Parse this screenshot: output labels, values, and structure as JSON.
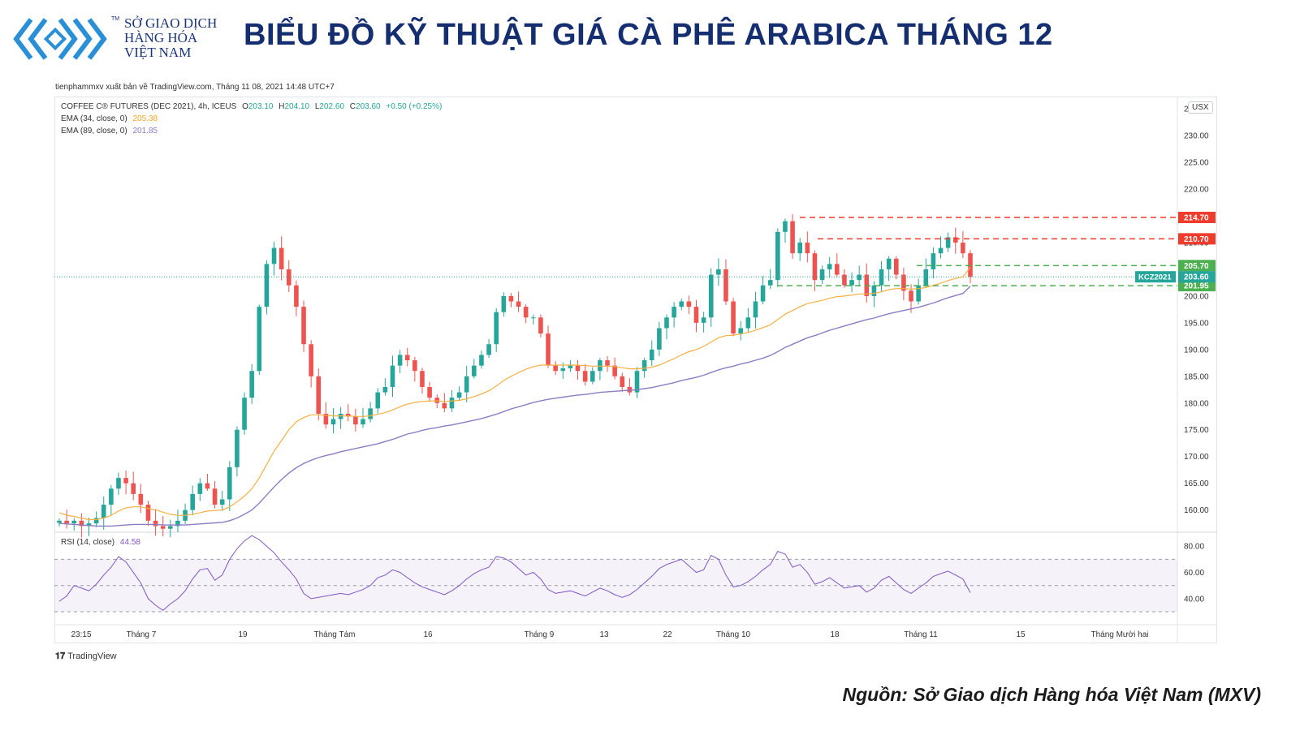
{
  "logo": {
    "tm": "TM",
    "line1": "SỞ GIAO DỊCH",
    "line2": "HÀNG HÓA",
    "line3": "VIỆT NAM",
    "color": "#2a8fd6"
  },
  "title": "BIỂU ĐỒ KỸ THUẬT GIÁ CÀ PHÊ ARABICA THÁNG 12",
  "published": "tienphammxv xuất bản về TradingView.com, Tháng 11 08, 2021 14:48 UTC+7",
  "legend": {
    "symbol": "COFFEE C® FUTURES (DEC 2021), 4h, ICEUS",
    "o_label": "O",
    "o": "203.10",
    "h_label": "H",
    "h": "204.10",
    "l_label": "L",
    "l": "202.60",
    "c_label": "C",
    "c": "203.60",
    "change": "+0.50 (+0.25%)",
    "ema34": "EMA (34, close, 0)",
    "ema34_value": "205.38",
    "ema89": "EMA (89, close, 0)",
    "ema89_value": "201.85",
    "rsi": "RSI (14, close)",
    "rsi_value": "44.58"
  },
  "currency": "USX",
  "footer_brand": "TradingView",
  "source": "Nguồn: Sở Giao dịch Hàng hóa Việt Nam (MXV)",
  "colors": {
    "up": "#26a69a",
    "down": "#ef5350",
    "ema34": "#f5b041",
    "ema89": "#8e7cc3",
    "rsi": "#7e57c2",
    "resistance": "#ef3b2c",
    "support": "#4caf50",
    "current": "#26a69a"
  },
  "chart_data": {
    "type": "line",
    "ylim": [
      156,
      237
    ],
    "y_ticks": [
      "160.00",
      "165.00",
      "170.00",
      "175.00",
      "180.00",
      "185.00",
      "190.00",
      "195.00",
      "200.00",
      "205.00",
      "210.00",
      "215.00",
      "220.00",
      "225.00",
      "230.00",
      "235.00"
    ],
    "x_ticks": [
      "23:15",
      "Tháng 7",
      "19",
      "Tháng Tám",
      "16",
      "Tháng 9",
      "13",
      "22",
      "Tháng 10",
      "18",
      "Tháng 11",
      "15",
      "Tháng Mười hai"
    ],
    "close": [
      158,
      157.5,
      158,
      157,
      157.5,
      158.5,
      161,
      164,
      166,
      165,
      163,
      161,
      158,
      157,
      156.5,
      157,
      158,
      160,
      163,
      165,
      164,
      161,
      162,
      168,
      175,
      181,
      186,
      198,
      206,
      209,
      205,
      202,
      198,
      191,
      185,
      178,
      176,
      177,
      178,
      177.5,
      176,
      177,
      179,
      182,
      183,
      187,
      189,
      188,
      186,
      183,
      181,
      180,
      179,
      181,
      182,
      185,
      187,
      189,
      191,
      197,
      200,
      199,
      198,
      196,
      196,
      193,
      187,
      186,
      186.5,
      187,
      186,
      184,
      186,
      188,
      187,
      185,
      183,
      182,
      186,
      188,
      190,
      194,
      196,
      198,
      199,
      198,
      195,
      196,
      204,
      205,
      199,
      193,
      194,
      196,
      199,
      202,
      203,
      212,
      214,
      208,
      210,
      208,
      203,
      205,
      206,
      204,
      202,
      203,
      204,
      200,
      202,
      205,
      207,
      204,
      201,
      199,
      202,
      205,
      208,
      209,
      211,
      210,
      208,
      203.6
    ],
    "ema34": [
      159.5,
      159,
      158.8,
      158.5,
      158.2,
      158.2,
      158.5,
      159,
      159.8,
      160.4,
      160.6,
      160.6,
      160.3,
      160,
      159.6,
      159.2,
      159,
      159,
      159.2,
      159.5,
      159.8,
      159.9,
      160,
      160.6,
      161.5,
      162.6,
      164,
      166,
      168.5,
      171,
      173,
      175,
      176.5,
      177.3,
      177.8,
      177.8,
      177.7,
      177.6,
      177.6,
      177.6,
      177.5,
      177.5,
      177.6,
      177.9,
      178.2,
      178.7,
      179.3,
      179.8,
      180.1,
      180.3,
      180.4,
      180.4,
      180.3,
      180.4,
      180.5,
      180.8,
      181.2,
      181.7,
      182.3,
      183.2,
      184.2,
      185,
      185.7,
      186.3,
      186.8,
      187.1,
      187.1,
      187.1,
      187.1,
      187.1,
      187.1,
      187,
      186.9,
      186.9,
      186.9,
      186.8,
      186.6,
      186.4,
      186.4,
      186.5,
      186.7,
      187.1,
      187.7,
      188.3,
      189,
      189.6,
      190,
      190.6,
      191.4,
      192.2,
      192.6,
      192.7,
      192.9,
      193.2,
      193.6,
      194.1,
      194.6,
      195.6,
      196.6,
      197.3,
      198,
      198.6,
      198.9,
      199.2,
      199.6,
      199.9,
      200,
      200.2,
      200.4,
      200.4,
      200.5,
      200.8,
      201.2,
      201.4,
      201.4,
      201.3,
      201.4,
      201.6,
      202,
      202.4,
      202.9,
      203.3,
      203.6,
      205.38
    ],
    "ema89": [
      157.5,
      157.4,
      157.3,
      157.2,
      157.1,
      157,
      157,
      157,
      157.1,
      157.2,
      157.3,
      157.3,
      157.3,
      157.3,
      157.2,
      157.2,
      157.2,
      157.2,
      157.3,
      157.4,
      157.5,
      157.6,
      157.7,
      158,
      158.5,
      159.2,
      160,
      161.3,
      162.8,
      164.3,
      165.7,
      166.9,
      167.9,
      168.7,
      169.3,
      169.8,
      170.2,
      170.5,
      170.9,
      171.2,
      171.5,
      171.8,
      172.1,
      172.4,
      172.8,
      173.2,
      173.7,
      174.2,
      174.5,
      174.9,
      175.2,
      175.4,
      175.7,
      175.9,
      176.2,
      176.5,
      176.8,
      177.1,
      177.5,
      177.9,
      178.4,
      178.9,
      179.3,
      179.7,
      180.1,
      180.4,
      180.7,
      180.9,
      181.1,
      181.3,
      181.5,
      181.6,
      181.8,
      182,
      182.1,
      182.2,
      182.3,
      182.4,
      182.5,
      182.7,
      182.9,
      183.2,
      183.5,
      183.8,
      184.2,
      184.5,
      184.8,
      185.2,
      185.7,
      186.2,
      186.6,
      186.9,
      187.3,
      187.6,
      188,
      188.4,
      188.9,
      189.6,
      190.4,
      191,
      191.6,
      192.2,
      192.6,
      193.1,
      193.6,
      194,
      194.4,
      194.8,
      195.2,
      195.6,
      195.9,
      196.3,
      196.7,
      197,
      197.3,
      197.6,
      197.9,
      198.3,
      198.7,
      199.2,
      199.7,
      200.1,
      200.5,
      201.85
    ],
    "rsi": {
      "ylim": [
        22,
        90
      ],
      "y_ticks": [
        "40.00",
        "60.00",
        "80.00"
      ],
      "band": [
        30,
        70
      ],
      "mid": 50,
      "values": [
        38,
        42,
        50,
        48,
        46,
        51,
        58,
        64,
        72,
        68,
        60,
        52,
        40,
        35,
        31,
        36,
        40,
        46,
        55,
        62,
        63,
        54,
        58,
        70,
        78,
        84,
        88,
        85,
        80,
        75,
        68,
        62,
        55,
        44,
        40,
        41,
        42,
        43,
        44,
        43,
        45,
        47,
        50,
        56,
        58,
        62,
        60,
        56,
        52,
        49,
        47,
        45,
        43,
        46,
        50,
        55,
        59,
        62,
        64,
        72,
        71,
        68,
        63,
        58,
        60,
        55,
        47,
        44,
        45,
        46,
        44,
        42,
        45,
        48,
        46,
        43,
        41,
        43,
        47,
        52,
        57,
        63,
        66,
        68,
        70,
        65,
        60,
        62,
        73,
        70,
        58,
        49,
        50,
        53,
        57,
        62,
        66,
        76,
        74,
        64,
        66,
        60,
        51,
        53,
        56,
        52,
        48,
        49,
        50,
        45,
        48,
        54,
        57,
        52,
        47,
        44,
        48,
        52,
        57,
        59,
        61,
        58,
        55,
        44.58
      ]
    },
    "levels": [
      {
        "label": "214.70",
        "value": 214.7,
        "kind": "resistance"
      },
      {
        "label": "210.70",
        "value": 210.7,
        "kind": "resistance"
      },
      {
        "label": "205.70",
        "value": 205.7,
        "kind": "support"
      },
      {
        "label": "201.95",
        "value": 201.95,
        "kind": "support"
      }
    ],
    "current": {
      "label": "203.60",
      "value": 203.6,
      "symbol": "KCZ2021"
    }
  }
}
